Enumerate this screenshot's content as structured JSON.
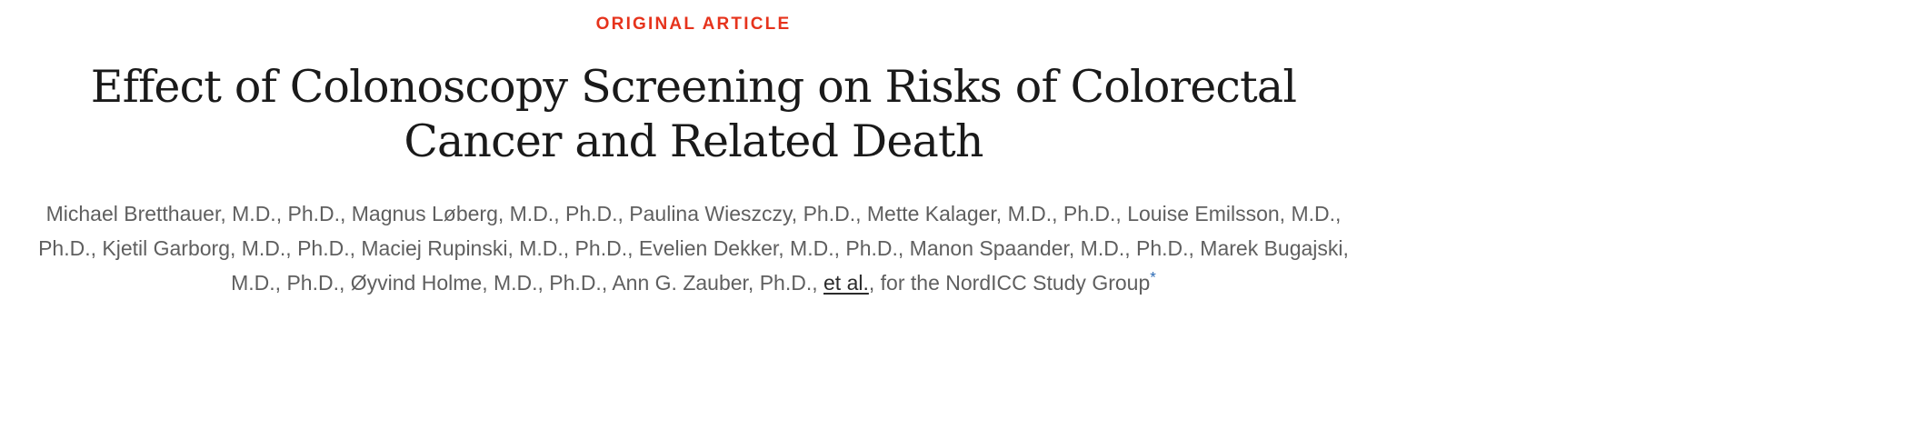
{
  "article": {
    "type_label": "ORIGINAL ARTICLE",
    "title": "Effect of Colonoscopy Screening on Risks of Colorectal Cancer and Related Death",
    "authors_text": "Michael Bretthauer, M.D., Ph.D., Magnus Løberg, M.D., Ph.D., Paulina Wieszczy, Ph.D., Mette Kalager, M.D., Ph.D., Louise Emilsson, M.D., Ph.D., Kjetil Garborg, M.D., Ph.D., Maciej Rupinski, M.D., Ph.D., Evelien Dekker, M.D., Ph.D., Manon Spaander, M.D., Ph.D., Marek Bugajski, M.D., Ph.D., Øyvind Holme, M.D., Ph.D., Ann G. Zauber, Ph.D.,",
    "et_al_link": "et al.",
    "study_group": ", for the NordICC Study Group",
    "footnote_marker": "*"
  },
  "colors": {
    "type_label": "#e6331c",
    "title": "#1a1a1a",
    "authors": "#5f5f5f",
    "footnote_marker": "#2d6bb5"
  }
}
